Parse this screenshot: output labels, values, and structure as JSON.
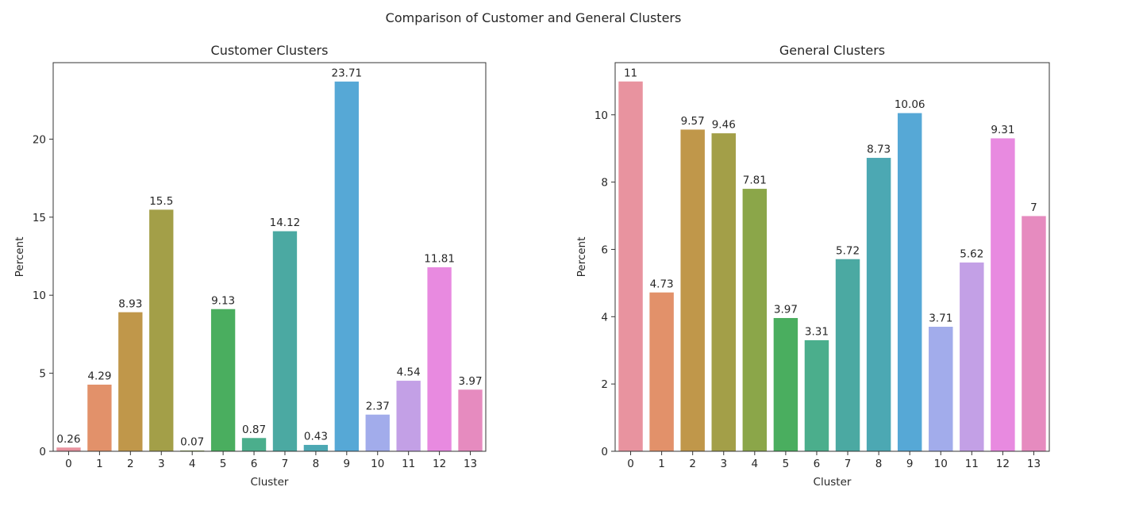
{
  "figure_title": "Comparison of Customer and General Clusters",
  "chart_data": [
    {
      "type": "bar",
      "title": "Customer Clusters",
      "xlabel": "Cluster",
      "ylabel": "Percent",
      "categories": [
        "0",
        "1",
        "2",
        "3",
        "4",
        "5",
        "6",
        "7",
        "8",
        "9",
        "10",
        "11",
        "12",
        "13"
      ],
      "values": [
        0.26,
        4.29,
        8.93,
        15.5,
        0.07,
        9.13,
        0.87,
        14.12,
        0.43,
        23.71,
        2.37,
        4.54,
        11.81,
        3.97
      ],
      "ylim": [
        0,
        24.9
      ],
      "yticks": [
        0,
        5,
        10,
        15,
        20
      ],
      "grid": false,
      "data_labels": true
    },
    {
      "type": "bar",
      "title": "General Clusters",
      "xlabel": "Cluster",
      "ylabel": "Percent",
      "categories": [
        "0",
        "1",
        "2",
        "3",
        "4",
        "5",
        "6",
        "7",
        "8",
        "9",
        "10",
        "11",
        "12",
        "13"
      ],
      "values": [
        11,
        4.73,
        9.57,
        9.46,
        7.81,
        3.97,
        3.31,
        5.72,
        8.73,
        10.06,
        3.71,
        5.62,
        9.31,
        7
      ],
      "ylim": [
        0,
        11.55
      ],
      "yticks": [
        0,
        2,
        4,
        6,
        8,
        10
      ],
      "grid": false,
      "data_labels": true
    }
  ],
  "colors": [
    "#e8939f",
    "#e2916a",
    "#c0974a",
    "#a39f48",
    "#8ba649",
    "#4aae5f",
    "#4bae8c",
    "#4ba9a2",
    "#4ca8b3",
    "#56a8d6",
    "#a2aceb",
    "#c3a0e6",
    "#e88ae0",
    "#e68bbf"
  ]
}
